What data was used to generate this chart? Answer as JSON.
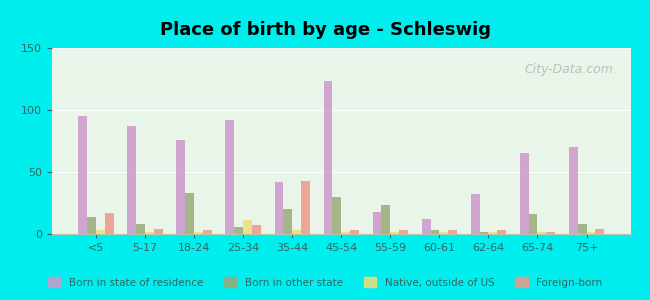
{
  "title": "Place of birth by age - Schleswig",
  "categories": [
    "<5",
    "5-17",
    "18-24",
    "25-34",
    "35-44",
    "45-54",
    "55-59",
    "60-61",
    "62-64",
    "65-74",
    "75+"
  ],
  "series": {
    "Born in state of residence": [
      95,
      87,
      76,
      92,
      42,
      123,
      18,
      12,
      32,
      65,
      70
    ],
    "Born in other state": [
      14,
      8,
      33,
      6,
      20,
      30,
      23,
      3,
      2,
      16,
      8
    ],
    "Native, outside of US": [
      3,
      2,
      2,
      11,
      3,
      2,
      2,
      2,
      2,
      2,
      2
    ],
    "Foreign-born": [
      17,
      4,
      3,
      7,
      43,
      3,
      3,
      3,
      3,
      2,
      4
    ]
  },
  "colors": {
    "Born in state of residence": "#cc99cc",
    "Born in other state": "#99aa77",
    "Native, outside of US": "#eedd77",
    "Foreign-born": "#ee9988"
  },
  "ylim": [
    0,
    150
  ],
  "yticks": [
    0,
    50,
    100,
    150
  ],
  "bg_color": "#e8f5e8",
  "outer_bg": "#00eeee",
  "watermark": "City-Data.com"
}
